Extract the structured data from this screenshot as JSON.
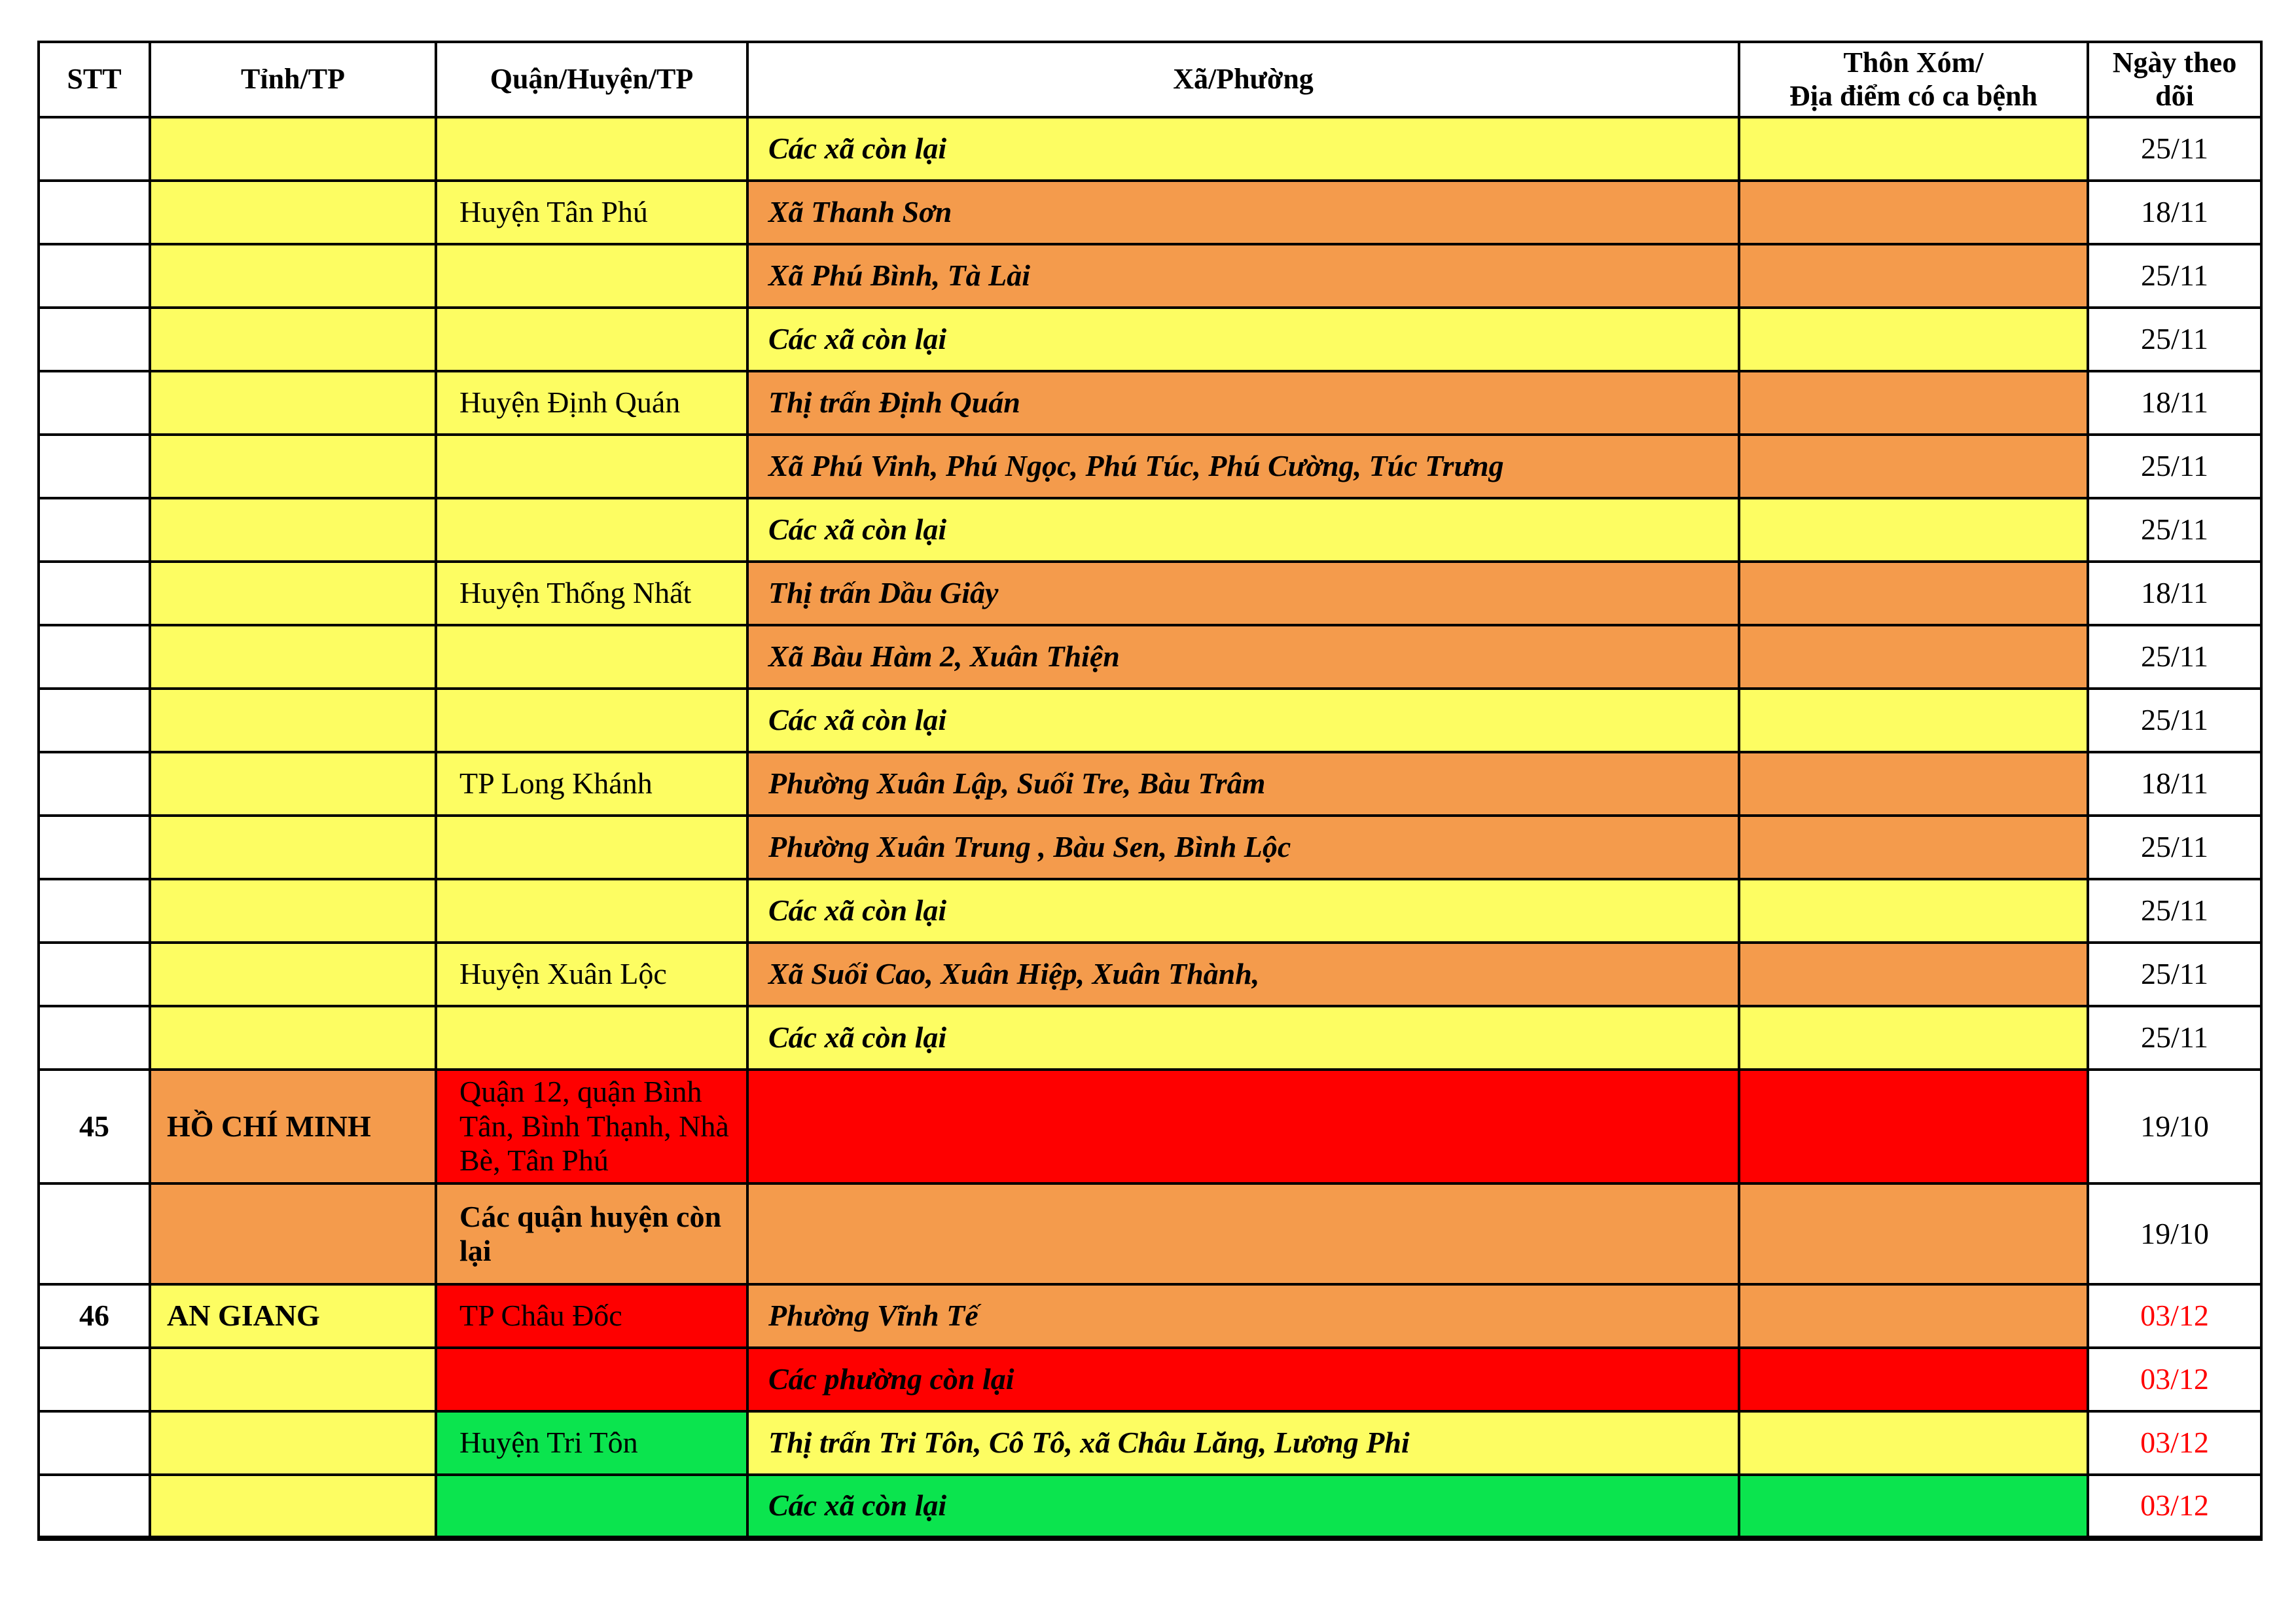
{
  "colors": {
    "yellow": "#FDFD62",
    "orange": "#F49B4C",
    "red": "#FE0000",
    "green": "#0BE44E",
    "white": "#FFFFFF",
    "border": "#000000",
    "date_red": "#FF0000",
    "text": "#000000"
  },
  "header": {
    "columns": [
      "STT",
      "Tỉnh/TP",
      "Quận/Huyện/TP",
      "Xã/Phường",
      "Thôn Xóm/\nĐịa điểm có ca bệnh",
      "Ngày theo\ndõi"
    ]
  },
  "rows": [
    {
      "stt": "",
      "tinh": "",
      "tinh_bg": "yellow",
      "quan": "",
      "quan_bg": "yellow",
      "quan_bold": false,
      "xa": "Các xã còn lại",
      "xa_bg": "yellow",
      "thon_bg": "yellow",
      "ngay": "25/11",
      "ngay_red": false,
      "h": 97
    },
    {
      "stt": "",
      "tinh": "",
      "tinh_bg": "yellow",
      "quan": "Huyện Tân Phú",
      "quan_bg": "yellow",
      "quan_bold": false,
      "xa": "Xã Thanh Sơn",
      "xa_bg": "orange",
      "thon_bg": "orange",
      "ngay": "18/11",
      "ngay_red": false,
      "h": 97
    },
    {
      "stt": "",
      "tinh": "",
      "tinh_bg": "yellow",
      "quan": "",
      "quan_bg": "yellow",
      "quan_bold": false,
      "xa": "Xã Phú Bình, Tà Lài",
      "xa_bg": "orange",
      "thon_bg": "orange",
      "ngay": "25/11",
      "ngay_red": false,
      "h": 97
    },
    {
      "stt": "",
      "tinh": "",
      "tinh_bg": "yellow",
      "quan": "",
      "quan_bg": "yellow",
      "quan_bold": false,
      "xa": "Các xã còn lại",
      "xa_bg": "yellow",
      "thon_bg": "yellow",
      "ngay": "25/11",
      "ngay_red": false,
      "h": 97
    },
    {
      "stt": "",
      "tinh": "",
      "tinh_bg": "yellow",
      "quan": "Huyện Định Quán",
      "quan_bg": "yellow",
      "quan_bold": false,
      "xa": "Thị trấn Định Quán",
      "xa_bg": "orange",
      "thon_bg": "orange",
      "ngay": "18/11",
      "ngay_red": false,
      "h": 97
    },
    {
      "stt": "",
      "tinh": "",
      "tinh_bg": "yellow",
      "quan": "",
      "quan_bg": "yellow",
      "quan_bold": false,
      "xa": "Xã Phú Vinh, Phú Ngọc, Phú Túc, Phú Cường, Túc Trưng",
      "xa_bg": "orange",
      "thon_bg": "orange",
      "ngay": "25/11",
      "ngay_red": false,
      "h": 97
    },
    {
      "stt": "",
      "tinh": "",
      "tinh_bg": "yellow",
      "quan": "",
      "quan_bg": "yellow",
      "quan_bold": false,
      "xa": "Các xã còn lại",
      "xa_bg": "yellow",
      "thon_bg": "yellow",
      "ngay": "25/11",
      "ngay_red": false,
      "h": 97
    },
    {
      "stt": "",
      "tinh": "",
      "tinh_bg": "yellow",
      "quan": "Huyện Thống Nhất",
      "quan_bg": "yellow",
      "quan_bold": false,
      "xa": "Thị trấn Dầu Giây",
      "xa_bg": "orange",
      "thon_bg": "orange",
      "ngay": "18/11",
      "ngay_red": false,
      "h": 97
    },
    {
      "stt": "",
      "tinh": "",
      "tinh_bg": "yellow",
      "quan": "",
      "quan_bg": "yellow",
      "quan_bold": false,
      "xa": "Xã Bàu Hàm 2, Xuân Thiện",
      "xa_bg": "orange",
      "thon_bg": "orange",
      "ngay": "25/11",
      "ngay_red": false,
      "h": 97
    },
    {
      "stt": "",
      "tinh": "",
      "tinh_bg": "yellow",
      "quan": "",
      "quan_bg": "yellow",
      "quan_bold": false,
      "xa": "Các xã còn lại",
      "xa_bg": "yellow",
      "thon_bg": "yellow",
      "ngay": "25/11",
      "ngay_red": false,
      "h": 97
    },
    {
      "stt": "",
      "tinh": "",
      "tinh_bg": "yellow",
      "quan": "TP Long Khánh",
      "quan_bg": "yellow",
      "quan_bold": false,
      "xa": "Phường Xuân Lập, Suối Tre, Bàu Trâm",
      "xa_bg": "orange",
      "thon_bg": "orange",
      "ngay": "18/11",
      "ngay_red": false,
      "h": 97
    },
    {
      "stt": "",
      "tinh": "",
      "tinh_bg": "yellow",
      "quan": "",
      "quan_bg": "yellow",
      "quan_bold": false,
      "xa": "Phường Xuân Trung , Bàu Sen, Bình Lộc",
      "xa_bg": "orange",
      "thon_bg": "orange",
      "ngay": "25/11",
      "ngay_red": false,
      "h": 97
    },
    {
      "stt": "",
      "tinh": "",
      "tinh_bg": "yellow",
      "quan": "",
      "quan_bg": "yellow",
      "quan_bold": false,
      "xa": "Các xã còn lại",
      "xa_bg": "yellow",
      "thon_bg": "yellow",
      "ngay": "25/11",
      "ngay_red": false,
      "h": 97
    },
    {
      "stt": "",
      "tinh": "",
      "tinh_bg": "yellow",
      "quan": "Huyện Xuân Lộc",
      "quan_bg": "yellow",
      "quan_bold": false,
      "xa": "Xã Suối Cao, Xuân Hiệp, Xuân Thành,",
      "xa_bg": "orange",
      "thon_bg": "orange",
      "ngay": "25/11",
      "ngay_red": false,
      "h": 97
    },
    {
      "stt": "",
      "tinh": "",
      "tinh_bg": "yellow",
      "quan": "",
      "quan_bg": "yellow",
      "quan_bold": false,
      "xa": "Các xã còn lại",
      "xa_bg": "yellow",
      "thon_bg": "yellow",
      "ngay": "25/11",
      "ngay_red": false,
      "h": 97
    },
    {
      "stt": "45",
      "tinh": "HỒ CHÍ MINH",
      "tinh_bg": "orange",
      "quan": "Quận 12, quận Bình Tân, Bình Thạnh, Nhà Bè, Tân Phú",
      "quan_bg": "red",
      "quan_bold": false,
      "xa": "",
      "xa_bg": "red",
      "thon_bg": "red",
      "ngay": "19/10",
      "ngay_red": false,
      "h": 174
    },
    {
      "stt": "",
      "tinh": "",
      "tinh_bg": "orange",
      "quan": "Các quận huyện còn lại",
      "quan_bg": "orange",
      "quan_bold": true,
      "xa": "",
      "xa_bg": "orange",
      "thon_bg": "orange",
      "ngay": "19/10",
      "ngay_red": false,
      "h": 154
    },
    {
      "stt": "46",
      "tinh": "AN GIANG",
      "tinh_bg": "yellow",
      "quan": "TP Châu Đốc",
      "quan_bg": "red",
      "quan_bold": false,
      "xa": "Phường Vĩnh Tế",
      "xa_bg": "orange",
      "thon_bg": "orange",
      "ngay": "03/12",
      "ngay_red": true,
      "h": 97
    },
    {
      "stt": "",
      "tinh": "",
      "tinh_bg": "yellow",
      "quan": "",
      "quan_bg": "red",
      "quan_bold": false,
      "xa": "Các phường còn lại",
      "xa_bg": "red",
      "thon_bg": "red",
      "ngay": "03/12",
      "ngay_red": true,
      "h": 97
    },
    {
      "stt": "",
      "tinh": "",
      "tinh_bg": "yellow",
      "quan": "Huyện Tri Tôn",
      "quan_bg": "green",
      "quan_bold": false,
      "xa": "Thị trấn Tri Tôn, Cô Tô, xã Châu Lăng, Lương Phi",
      "xa_bg": "yellow",
      "thon_bg": "yellow",
      "ngay": "03/12",
      "ngay_red": true,
      "h": 97
    },
    {
      "stt": "",
      "tinh": "",
      "tinh_bg": "yellow",
      "quan": "",
      "quan_bg": "green",
      "quan_bold": false,
      "xa": "Các xã còn lại",
      "xa_bg": "green",
      "thon_bg": "green",
      "ngay": "03/12",
      "ngay_red": true,
      "h": 97
    }
  ]
}
